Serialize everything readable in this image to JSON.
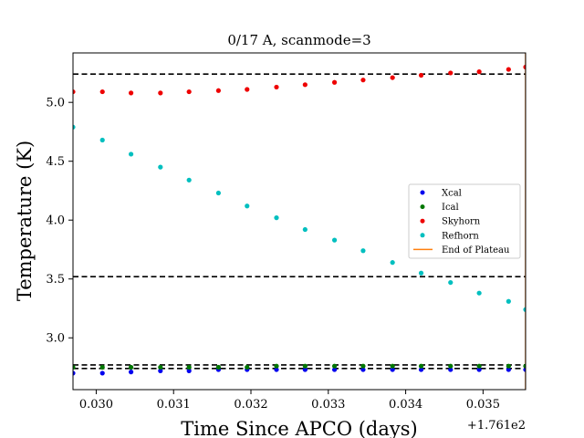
{
  "chart_data": {
    "type": "scatter",
    "title": "0/17 A, scanmode=3",
    "xlabel": "Time Since APCO (days)",
    "ylabel": "Temperature (K)",
    "x_offset_label": "+1.761e2",
    "xlim": [
      0.0297,
      0.03555
    ],
    "ylim": [
      2.56,
      5.42
    ],
    "x_ticks": [
      0.03,
      0.031,
      0.032,
      0.033,
      0.034,
      0.035
    ],
    "x_tick_labels": [
      "0.030",
      "0.031",
      "0.032",
      "0.033",
      "0.034",
      "0.035"
    ],
    "y_ticks": [
      3.0,
      3.5,
      4.0,
      4.5,
      5.0
    ],
    "y_tick_labels": [
      "3.0",
      "3.5",
      "4.0",
      "4.5",
      "5.0"
    ],
    "grid": false,
    "legend_position": "center-right",
    "x": [
      0.0297,
      0.03008,
      0.03045,
      0.03083,
      0.0312,
      0.03158,
      0.03195,
      0.03233,
      0.0327,
      0.03308,
      0.03345,
      0.03383,
      0.0342,
      0.03458,
      0.03495,
      0.03533,
      0.03555
    ],
    "series": [
      {
        "name": "Xcal",
        "color": "#0000ee",
        "values": [
          2.7,
          2.7,
          2.71,
          2.72,
          2.72,
          2.73,
          2.73,
          2.73,
          2.73,
          2.73,
          2.73,
          2.73,
          2.73,
          2.73,
          2.73,
          2.73,
          2.73
        ]
      },
      {
        "name": "Ical",
        "color": "#007700",
        "values": [
          2.75,
          2.75,
          2.75,
          2.75,
          2.75,
          2.75,
          2.75,
          2.76,
          2.76,
          2.76,
          2.76,
          2.76,
          2.76,
          2.76,
          2.76,
          2.76,
          2.76
        ]
      },
      {
        "name": "Skyhorn",
        "color": "#ee0000",
        "values": [
          5.09,
          5.09,
          5.08,
          5.08,
          5.09,
          5.1,
          5.11,
          5.13,
          5.15,
          5.17,
          5.19,
          5.21,
          5.23,
          5.25,
          5.26,
          5.28,
          5.3
        ]
      },
      {
        "name": "Refhorn",
        "color": "#00bfbf",
        "values": [
          4.79,
          4.68,
          4.56,
          4.45,
          4.34,
          4.23,
          4.12,
          4.02,
          3.92,
          3.83,
          3.74,
          3.64,
          3.55,
          3.47,
          3.38,
          3.31,
          3.24
        ]
      }
    ],
    "plateau": {
      "name": "End of Plateau",
      "color": "#ff7f0e",
      "x": 0.03555
    },
    "reference_lines_y": [
      5.24,
      3.52,
      2.77,
      2.74
    ],
    "legend_entries": [
      {
        "label": "Xcal",
        "marker": "dot",
        "color": "#0000ee"
      },
      {
        "label": "Ical",
        "marker": "dot",
        "color": "#007700"
      },
      {
        "label": "Skyhorn",
        "marker": "dot",
        "color": "#ee0000"
      },
      {
        "label": "Refhorn",
        "marker": "dot",
        "color": "#00bfbf"
      },
      {
        "label": "End of Plateau",
        "marker": "line",
        "color": "#ff7f0e"
      }
    ]
  }
}
